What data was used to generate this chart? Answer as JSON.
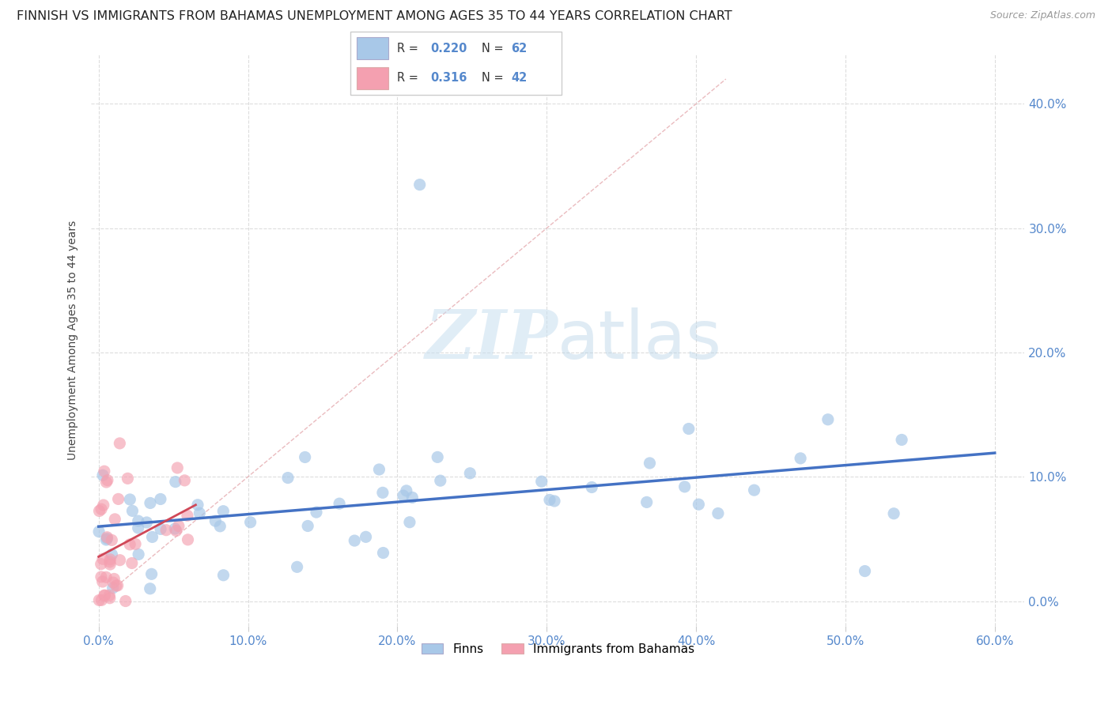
{
  "title": "FINNISH VS IMMIGRANTS FROM BAHAMAS UNEMPLOYMENT AMONG AGES 35 TO 44 YEARS CORRELATION CHART",
  "source": "Source: ZipAtlas.com",
  "ylabel": "Unemployment Among Ages 35 to 44 years",
  "xlim": [
    -0.005,
    0.62
  ],
  "ylim": [
    -0.02,
    0.44
  ],
  "xtick_vals": [
    0.0,
    0.1,
    0.2,
    0.3,
    0.4,
    0.5,
    0.6
  ],
  "ytick_vals": [
    0.0,
    0.1,
    0.2,
    0.3,
    0.4
  ],
  "finns_color": "#a8c8e8",
  "bahamas_color": "#f4a0b0",
  "finns_R": 0.22,
  "finns_N": 62,
  "bahamas_R": 0.316,
  "bahamas_N": 42,
  "legend_label_finns": "Finns",
  "legend_label_bahamas": "Immigrants from Bahamas",
  "watermark_zip": "ZIP",
  "watermark_atlas": "atlas",
  "diagonal_color": "#e8b4b8",
  "regression_finn_color": "#4472c4",
  "regression_bahamas_color": "#d04858",
  "tick_color": "#5588cc",
  "title_fontsize": 11.5,
  "tick_fontsize": 11,
  "ylabel_fontsize": 10,
  "source_fontsize": 9
}
